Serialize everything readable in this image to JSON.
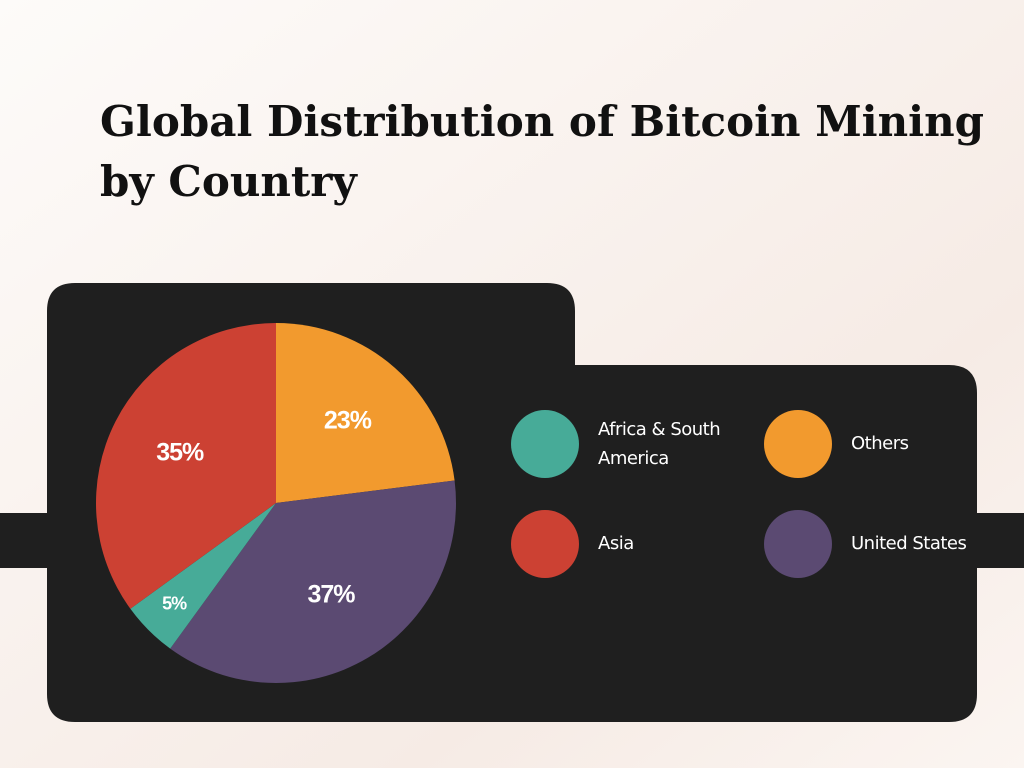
{
  "chart_data": {
    "type": "pie",
    "title": "Global Distribution of Bitcoin Mining by Country",
    "categories": [
      "Others",
      "United States",
      "Africa & South America",
      "Asia"
    ],
    "values": [
      23,
      37,
      5,
      35
    ],
    "value_labels": [
      "23%",
      "37%",
      "5%",
      "35%"
    ],
    "colors": [
      "#f29a2e",
      "#5b4a72",
      "#47ab98",
      "#cc4133"
    ]
  }
}
